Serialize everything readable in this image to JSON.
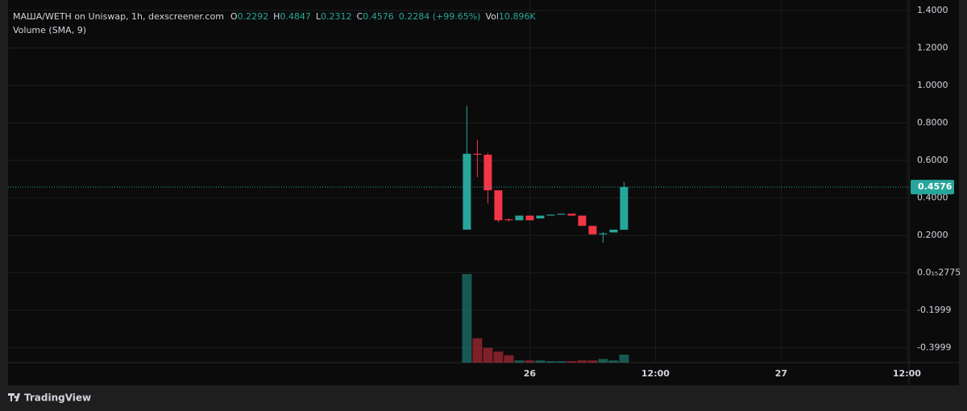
{
  "chart_data": {
    "type": "candlestick",
    "header": {
      "title": "МАША/WETH on Uniswap, 1h, dexscreener.com",
      "labels": [
        "O",
        "H",
        "L",
        "C"
      ],
      "change": "0.2284 (+99.65%)",
      "vol_label": "Vol",
      "vol": "10.896K",
      "indicator": "Volume (SMA, 9)"
    },
    "x": [
      18,
      19,
      20,
      21,
      22,
      23,
      24,
      25,
      26,
      27,
      28,
      29,
      30,
      31,
      32,
      33
    ],
    "open": [
      0.23,
      0.635,
      0.63,
      0.44,
      0.285,
      0.28,
      0.305,
      0.29,
      0.305,
      0.31,
      0.315,
      0.305,
      0.25,
      0.205,
      0.215,
      0.2292
    ],
    "high": [
      0.89,
      0.71,
      0.64,
      0.44,
      0.29,
      0.305,
      0.305,
      0.305,
      0.31,
      0.315,
      0.315,
      0.305,
      0.25,
      0.215,
      0.23,
      0.4847
    ],
    "low": [
      0.23,
      0.51,
      0.37,
      0.27,
      0.275,
      0.28,
      0.28,
      0.29,
      0.305,
      0.31,
      0.305,
      0.25,
      0.205,
      0.16,
      0.215,
      0.2312
    ],
    "close": [
      0.635,
      0.63,
      0.44,
      0.28,
      0.28,
      0.305,
      0.28,
      0.305,
      0.31,
      0.315,
      0.305,
      0.25,
      0.205,
      0.21,
      0.23,
      0.4576
    ],
    "volume": [
      120000,
      33000,
      20000,
      15000,
      10000,
      3000,
      3000,
      3000,
      2000,
      2000,
      2000,
      3000,
      3000,
      5000,
      3000,
      10896
    ],
    "up_color": "#26a69a",
    "down_color": "#f23645",
    "xlim": [
      -25.8,
      60.2
    ],
    "xticks": [
      {
        "value": 24,
        "label": "26"
      },
      {
        "value": 36,
        "label": "12:00"
      },
      {
        "value": 48,
        "label": "27"
      },
      {
        "value": 60,
        "label": "12:00"
      }
    ],
    "ylim": [
      -0.48,
      1.456
    ],
    "yticks": [
      {
        "value": 1.4,
        "label": "1.4000"
      },
      {
        "value": 1.2,
        "label": "1.2000"
      },
      {
        "value": 1.0,
        "label": "1.0000"
      },
      {
        "value": 0.8,
        "label": "0.8000"
      },
      {
        "value": 0.6,
        "label": "0.6000"
      },
      {
        "value": 0.4,
        "label": "0.4000"
      },
      {
        "value": 0.2,
        "label": "0.2000"
      },
      {
        "value": 2.775e-16,
        "label": "0.0₁₅2775"
      },
      -0.1999,
      -0.3999
    ],
    "grid": true,
    "brand": "TradingView"
  }
}
